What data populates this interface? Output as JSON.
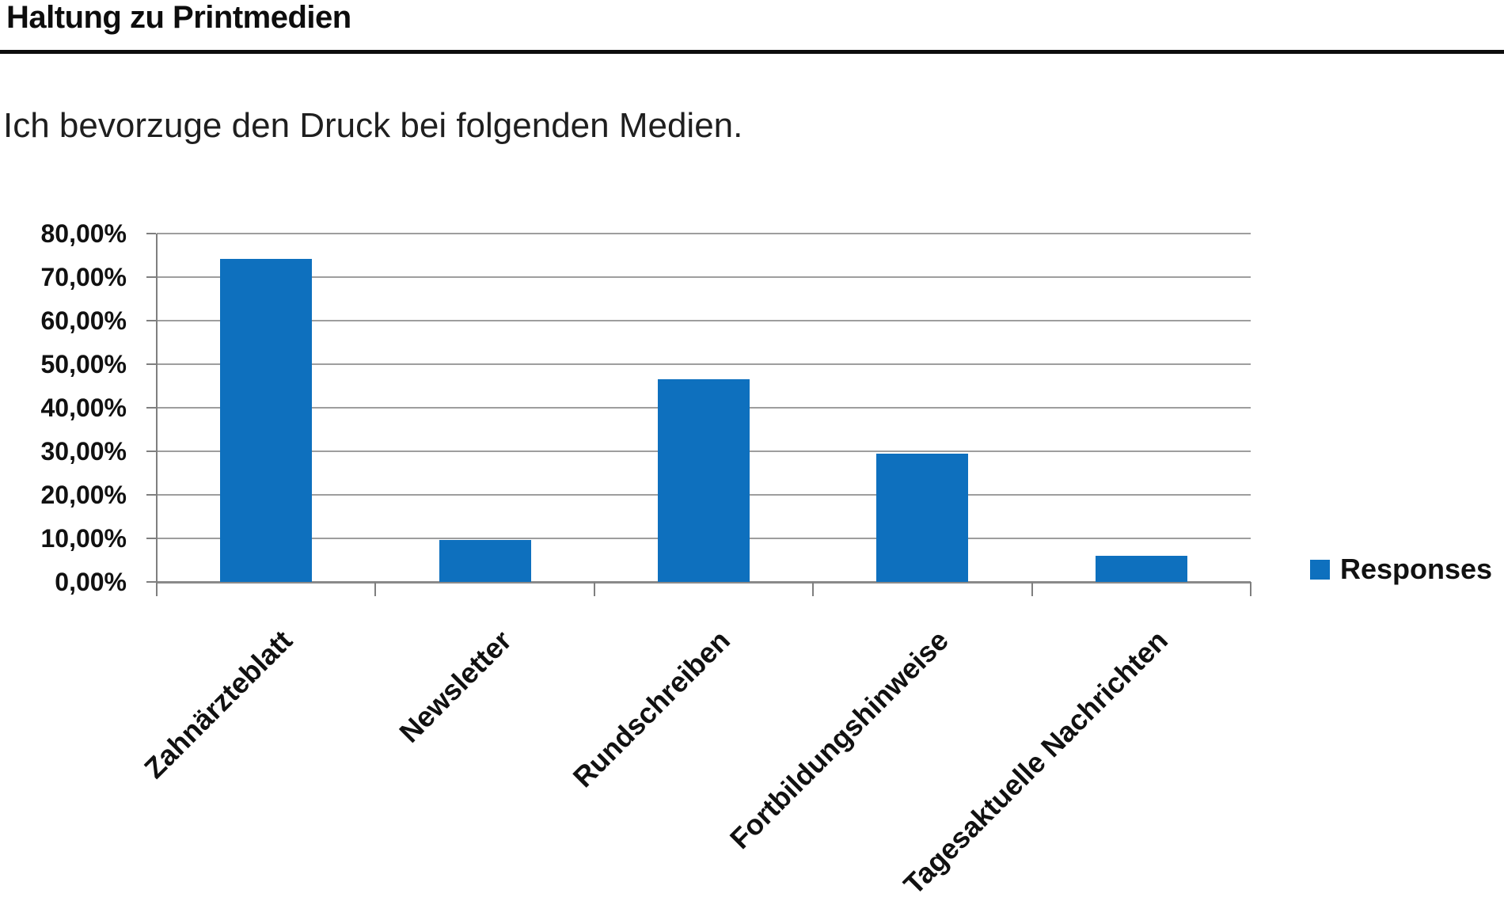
{
  "header": {
    "title": "Haltung zu Printmedien"
  },
  "colors": {
    "bar": "#0E70BE",
    "grid": "#9e9e9e",
    "axis": "#7f7f7f",
    "rule": "#0d0d0d",
    "text": "#1a1a1a",
    "background": "#ffffff"
  },
  "legend": {
    "label": "Responses"
  },
  "chart_data": {
    "type": "bar",
    "title": "Haltung zu Printmedien",
    "subtitle": "Ich bevorzuge den Druck bei folgenden Medien.",
    "categories": [
      "Zahnärzteblatt",
      "Newsletter",
      "Rundschreiben",
      "Fortbildungshinweise",
      "Tagesaktuelle Nachrichten"
    ],
    "series": [
      {
        "name": "Responses",
        "values": [
          74.2,
          9.6,
          46.6,
          29.4,
          6.0
        ]
      }
    ],
    "unit": "%",
    "xlabel": "",
    "ylabel": "",
    "ylim": [
      0,
      80
    ],
    "ytick_step": 10,
    "ytick_labels": [
      "80,00%",
      "70,00%",
      "60,00%",
      "50,00%",
      "40,00%",
      "30,00%",
      "20,00%",
      "10,00%",
      "0,00%"
    ],
    "grid": "horizontal",
    "legend_position": "right",
    "bar_color": "#0E70BE",
    "value_format": "de-percent"
  }
}
